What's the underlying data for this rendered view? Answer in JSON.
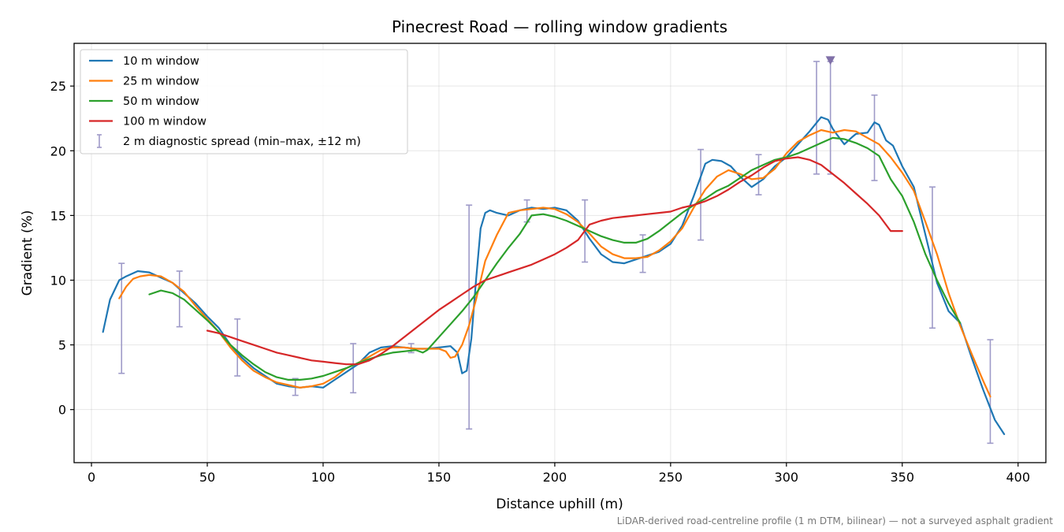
{
  "chart_data": {
    "type": "line",
    "title": "Pinecrest Road — rolling window gradients",
    "xlabel": "Distance uphill (m)",
    "ylabel": "Gradient (%)",
    "xlim": [
      -7.5,
      412
    ],
    "ylim": [
      -4.1,
      28.3
    ],
    "x_ticks": [
      0,
      50,
      100,
      150,
      200,
      250,
      300,
      350,
      400
    ],
    "y_ticks": [
      0,
      5,
      10,
      15,
      20,
      25
    ],
    "grid": true,
    "legend_position": "top-left",
    "series": [
      {
        "name": "10 m window",
        "color": "#1f77b4",
        "x": [
          5,
          8,
          12,
          15,
          20,
          25,
          30,
          35,
          40,
          45,
          50,
          55,
          60,
          65,
          70,
          75,
          80,
          85,
          90,
          95,
          100,
          105,
          110,
          115,
          120,
          125,
          130,
          135,
          140,
          145,
          150,
          155,
          158,
          160,
          162,
          164,
          166,
          168,
          170,
          172,
          175,
          180,
          185,
          190,
          195,
          200,
          205,
          210,
          215,
          220,
          225,
          230,
          235,
          240,
          245,
          250,
          255,
          260,
          263,
          265,
          268,
          272,
          276,
          280,
          285,
          290,
          295,
          300,
          305,
          310,
          315,
          318,
          320,
          322,
          325,
          328,
          330,
          335,
          338,
          340,
          343,
          346,
          350,
          355,
          360,
          365,
          370,
          375,
          380,
          385,
          390,
          394
        ],
        "y": [
          6.0,
          8.5,
          10.0,
          10.3,
          10.7,
          10.6,
          10.2,
          9.8,
          9.0,
          8.2,
          7.2,
          6.3,
          5.0,
          4.0,
          3.2,
          2.6,
          2.0,
          1.8,
          1.7,
          1.8,
          1.7,
          2.3,
          2.9,
          3.5,
          4.4,
          4.8,
          4.9,
          4.8,
          4.7,
          4.7,
          4.8,
          4.9,
          4.4,
          2.8,
          3.0,
          5.5,
          10.0,
          14.0,
          15.2,
          15.4,
          15.2,
          15.0,
          15.4,
          15.6,
          15.5,
          15.6,
          15.4,
          14.6,
          13.2,
          12.0,
          11.4,
          11.3,
          11.6,
          11.9,
          12.2,
          12.8,
          14.2,
          16.5,
          18.0,
          19.0,
          19.3,
          19.2,
          18.8,
          18.0,
          17.2,
          17.8,
          18.8,
          19.5,
          20.5,
          21.5,
          22.6,
          22.4,
          21.7,
          21.2,
          20.5,
          21.0,
          21.3,
          21.4,
          22.2,
          22.0,
          20.8,
          20.4,
          18.8,
          17.2,
          13.5,
          9.8,
          7.6,
          6.7,
          4.0,
          1.5,
          -0.8,
          -1.9
        ]
      },
      {
        "name": "25 m window",
        "color": "#ff7f0e",
        "x": [
          12,
          15,
          18,
          21,
          25,
          30,
          35,
          40,
          45,
          50,
          55,
          60,
          65,
          70,
          75,
          80,
          85,
          90,
          95,
          100,
          105,
          110,
          115,
          120,
          125,
          130,
          135,
          140,
          145,
          150,
          153,
          155,
          157,
          160,
          163,
          166,
          170,
          175,
          180,
          185,
          190,
          195,
          200,
          205,
          210,
          215,
          220,
          225,
          230,
          235,
          240,
          245,
          250,
          255,
          260,
          265,
          270,
          275,
          280,
          285,
          290,
          295,
          300,
          305,
          310,
          315,
          320,
          325,
          330,
          335,
          340,
          345,
          350,
          355,
          360,
          365,
          370,
          375,
          380,
          385,
          388
        ],
        "y": [
          8.6,
          9.5,
          10.1,
          10.3,
          10.4,
          10.3,
          9.8,
          9.1,
          8.0,
          7.0,
          6.0,
          4.8,
          3.8,
          3.0,
          2.5,
          2.1,
          1.9,
          1.7,
          1.8,
          2.0,
          2.5,
          3.2,
          3.6,
          4.1,
          4.6,
          4.8,
          4.8,
          4.7,
          4.7,
          4.7,
          4.5,
          4.0,
          4.1,
          5.0,
          6.5,
          8.5,
          11.5,
          13.5,
          15.2,
          15.4,
          15.5,
          15.6,
          15.5,
          15.1,
          14.5,
          13.6,
          12.6,
          12.0,
          11.7,
          11.7,
          11.8,
          12.3,
          13.0,
          14.0,
          15.6,
          17.0,
          18.0,
          18.5,
          18.2,
          17.8,
          17.9,
          18.6,
          19.8,
          20.7,
          21.2,
          21.6,
          21.4,
          21.6,
          21.5,
          21.0,
          20.5,
          19.5,
          18.3,
          16.9,
          14.5,
          12.0,
          9.0,
          6.5,
          4.3,
          2.2,
          1.0
        ]
      },
      {
        "name": "50 m window",
        "color": "#2ca02c",
        "x": [
          25,
          30,
          35,
          40,
          45,
          50,
          55,
          60,
          65,
          70,
          75,
          80,
          85,
          90,
          95,
          100,
          105,
          110,
          115,
          120,
          125,
          130,
          135,
          140,
          143,
          145,
          150,
          155,
          160,
          165,
          170,
          175,
          180,
          185,
          190,
          195,
          200,
          205,
          210,
          215,
          220,
          225,
          230,
          235,
          240,
          245,
          250,
          255,
          260,
          265,
          270,
          275,
          280,
          285,
          290,
          295,
          300,
          305,
          310,
          315,
          320,
          325,
          330,
          335,
          340,
          345,
          350,
          355,
          360,
          365,
          370,
          375
        ],
        "y": [
          8.9,
          9.2,
          9.0,
          8.5,
          7.7,
          6.9,
          6.0,
          5.0,
          4.2,
          3.5,
          2.9,
          2.5,
          2.3,
          2.3,
          2.4,
          2.6,
          2.9,
          3.2,
          3.6,
          3.9,
          4.2,
          4.4,
          4.5,
          4.6,
          4.4,
          4.6,
          5.6,
          6.6,
          7.6,
          8.7,
          10.0,
          11.3,
          12.5,
          13.6,
          15.0,
          15.1,
          14.9,
          14.6,
          14.2,
          13.8,
          13.4,
          13.1,
          12.9,
          12.9,
          13.2,
          13.8,
          14.5,
          15.2,
          15.8,
          16.3,
          16.9,
          17.3,
          17.9,
          18.5,
          18.9,
          19.3,
          19.5,
          19.8,
          20.2,
          20.6,
          21.0,
          20.9,
          20.6,
          20.2,
          19.6,
          17.8,
          16.5,
          14.5,
          12.0,
          10.0,
          8.2,
          6.7
        ]
      },
      {
        "name": "100 m window",
        "color": "#d62728",
        "x": [
          50,
          55,
          60,
          65,
          70,
          75,
          80,
          85,
          90,
          95,
          100,
          105,
          110,
          115,
          120,
          125,
          130,
          135,
          140,
          145,
          150,
          155,
          160,
          165,
          170,
          175,
          180,
          185,
          190,
          195,
          200,
          205,
          210,
          215,
          220,
          225,
          230,
          235,
          240,
          245,
          250,
          255,
          260,
          265,
          270,
          275,
          280,
          285,
          290,
          295,
          300,
          305,
          310,
          315,
          320,
          325,
          330,
          335,
          340,
          345,
          350
        ],
        "y": [
          6.1,
          5.9,
          5.6,
          5.3,
          5.0,
          4.7,
          4.4,
          4.2,
          4.0,
          3.8,
          3.7,
          3.6,
          3.5,
          3.5,
          3.8,
          4.3,
          4.9,
          5.6,
          6.3,
          7.0,
          7.7,
          8.3,
          8.9,
          9.5,
          10.0,
          10.3,
          10.6,
          10.9,
          11.2,
          11.6,
          12.0,
          12.5,
          13.1,
          14.3,
          14.6,
          14.8,
          14.9,
          15.0,
          15.1,
          15.2,
          15.3,
          15.6,
          15.8,
          16.1,
          16.5,
          17.0,
          17.6,
          18.1,
          18.7,
          19.2,
          19.4,
          19.5,
          19.3,
          18.9,
          18.2,
          17.5,
          16.7,
          15.9,
          15.0,
          13.8,
          13.8
        ]
      }
    ],
    "error_bars": {
      "name": "2 m diagnostic spread (min–max, ±12 m)",
      "color": "#9e9ac8",
      "points": [
        {
          "x": 13,
          "low": 2.8,
          "high": 11.3
        },
        {
          "x": 38,
          "low": 6.4,
          "high": 10.7
        },
        {
          "x": 63,
          "low": 2.6,
          "high": 7.0
        },
        {
          "x": 88,
          "low": 1.1,
          "high": 2.4
        },
        {
          "x": 113,
          "low": 1.3,
          "high": 5.1
        },
        {
          "x": 138,
          "low": 4.4,
          "high": 5.1
        },
        {
          "x": 163,
          "low": -1.5,
          "high": 15.8
        },
        {
          "x": 188,
          "low": 14.5,
          "high": 16.2
        },
        {
          "x": 213,
          "low": 11.4,
          "high": 16.2
        },
        {
          "x": 238,
          "low": 10.6,
          "high": 13.5
        },
        {
          "x": 263,
          "low": 13.1,
          "high": 20.1
        },
        {
          "x": 288,
          "low": 16.6,
          "high": 19.7
        },
        {
          "x": 313,
          "low": 18.2,
          "high": 26.9
        },
        {
          "x": 319,
          "low": 18.2,
          "high": 26.9
        },
        {
          "x": 338,
          "low": 17.7,
          "high": 24.3
        },
        {
          "x": 363,
          "low": 6.3,
          "high": 17.2
        },
        {
          "x": 388,
          "low": -2.6,
          "high": 5.4
        }
      ],
      "clipped_marker": {
        "x": 319,
        "y": 27.0
      }
    }
  },
  "footnote": "LiDAR-derived road-centreline profile (1 m DTM, bilinear) — not a surveyed asphalt gradient"
}
